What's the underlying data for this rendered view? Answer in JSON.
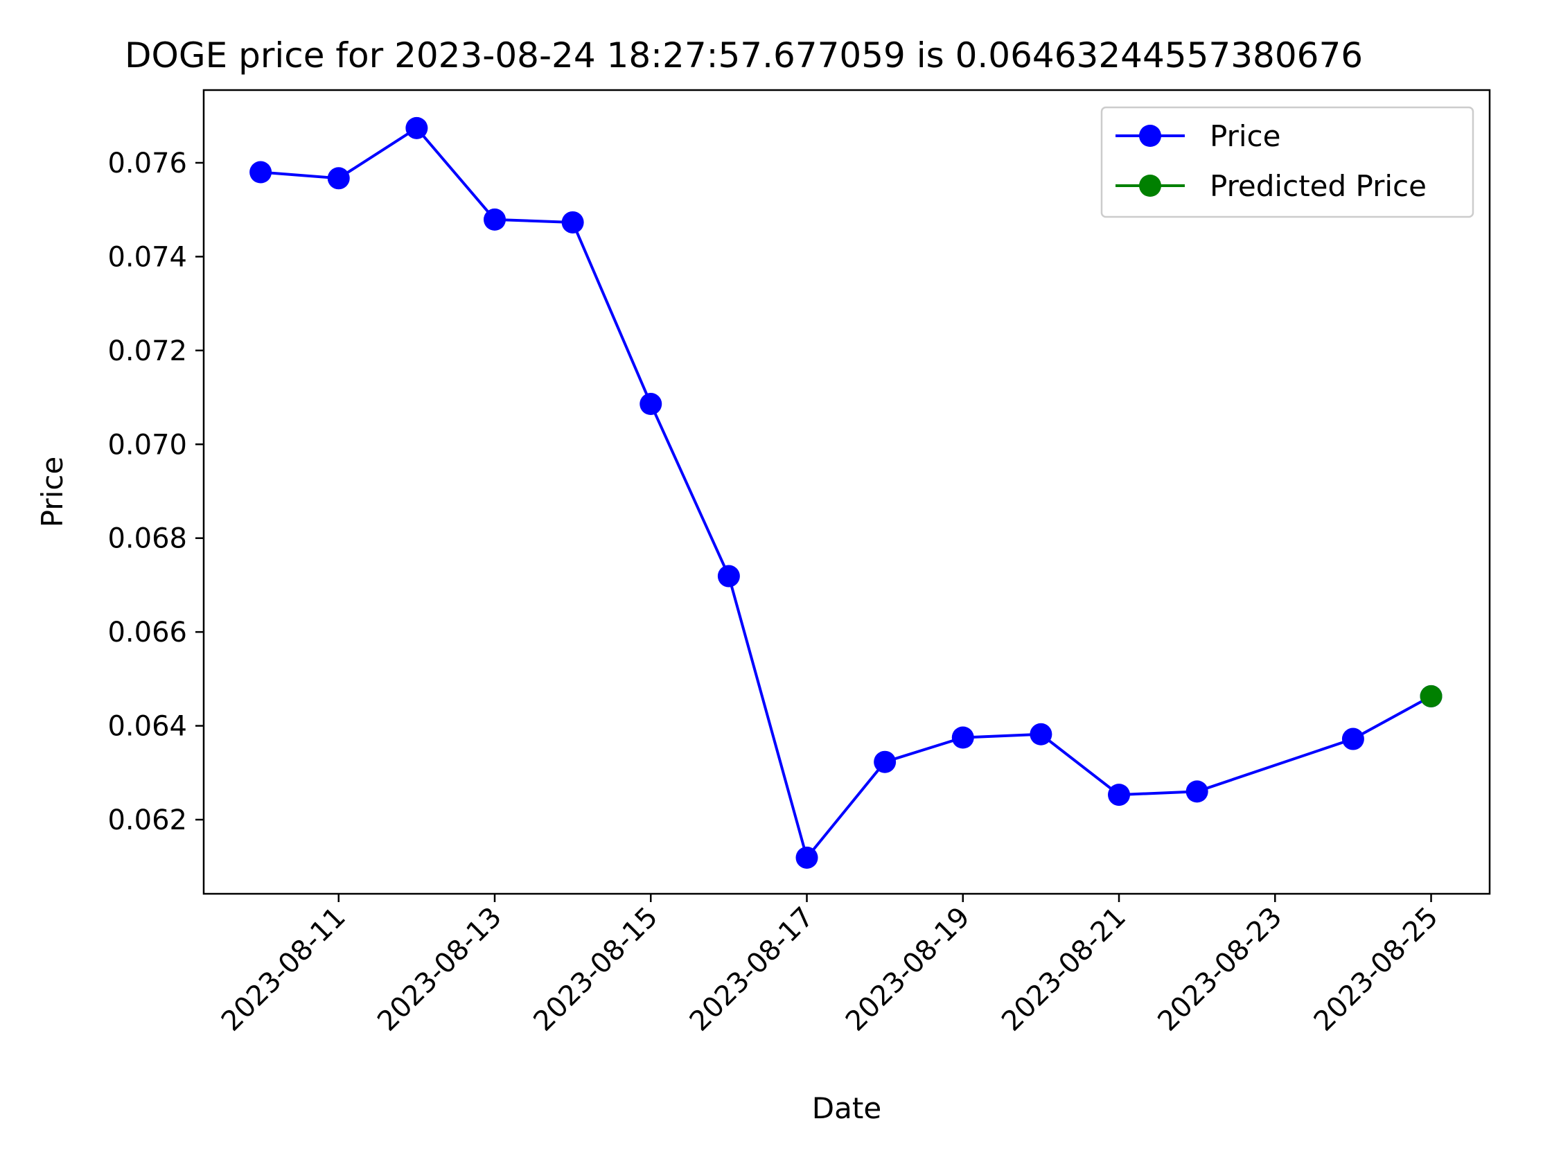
{
  "chart_data": {
    "type": "line",
    "title": "DOGE price for 2023-08-24 18:27:57.677059 is 0.06463244557380676",
    "xlabel": "Date",
    "ylabel": "Price",
    "xlim": [
      "2023-08-09T06:30:00",
      "2023-08-25T18:00:00"
    ],
    "ylim": [
      0.06042,
      0.07755
    ],
    "x_ticks": [
      "2023-08-11",
      "2023-08-13",
      "2023-08-15",
      "2023-08-17",
      "2023-08-19",
      "2023-08-21",
      "2023-08-23",
      "2023-08-25"
    ],
    "y_ticks": [
      "0.062",
      "0.064",
      "0.066",
      "0.068",
      "0.070",
      "0.072",
      "0.074",
      "0.076"
    ],
    "grid": false,
    "legend_position": "top-right",
    "series": [
      {
        "name": "Price",
        "color": "#0000ff",
        "marker": "circle",
        "x": [
          "2023-08-10",
          "2023-08-11",
          "2023-08-12",
          "2023-08-13",
          "2023-08-14",
          "2023-08-15",
          "2023-08-16",
          "2023-08-17",
          "2023-08-18",
          "2023-08-19",
          "2023-08-20",
          "2023-08-21",
          "2023-08-22",
          "2023-08-24",
          "2023-08-25"
        ],
        "y": [
          0.0758,
          0.07567,
          0.07674,
          0.07479,
          0.07473,
          0.07086,
          0.06719,
          0.06119,
          0.06323,
          0.06375,
          0.06382,
          0.06253,
          0.0626,
          0.06372,
          0.06463
        ]
      },
      {
        "name": "Predicted Price",
        "color": "#008000",
        "marker": "circle",
        "x": [
          "2023-08-25"
        ],
        "y": [
          0.06463
        ]
      }
    ]
  }
}
